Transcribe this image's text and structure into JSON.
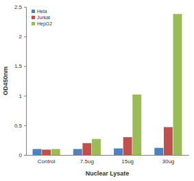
{
  "chart_data": {
    "type": "bar",
    "x_label": "Nuclear Lysate",
    "y_label": "OD450nm",
    "categories": [
      "Control",
      "7.5ug",
      "15ug",
      "30ug"
    ],
    "series": [
      {
        "name": "Hela",
        "color": "#4f81bd",
        "values": [
          0.1,
          0.1,
          0.11,
          0.12
        ]
      },
      {
        "name": "Jurkat",
        "color": "#c0504d",
        "values": [
          0.09,
          0.2,
          0.3,
          0.47
        ]
      },
      {
        "name": "HepG2",
        "color": "#9bbb59",
        "values": [
          0.1,
          0.27,
          1.02,
          2.38
        ]
      }
    ],
    "ylim": [
      0,
      2.5
    ],
    "yticks": [
      0,
      0.5,
      1,
      1.5,
      2,
      2.5
    ],
    "grid": false,
    "legend": "upper left"
  }
}
